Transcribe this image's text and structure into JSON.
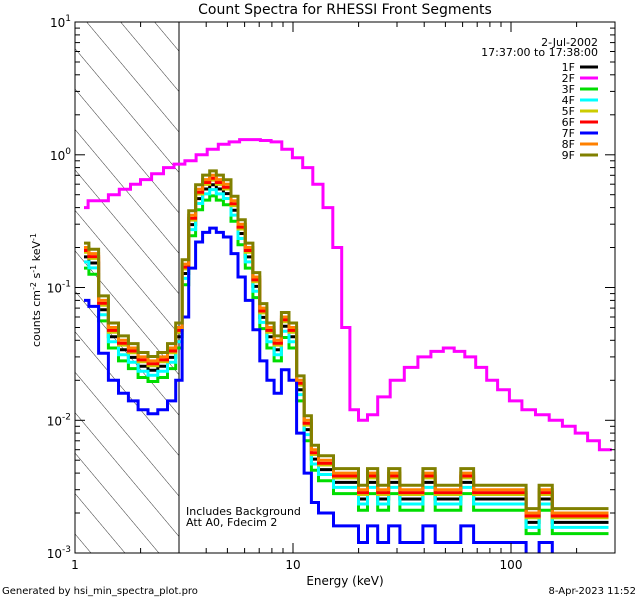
{
  "chart_data": {
    "type": "line",
    "title": "Count Spectra for RHESSI Front Segments",
    "xlabel": "Energy (keV)",
    "ylabel": "counts cm^-2 s^-1 keV^-1",
    "xscale": "log",
    "yscale": "log",
    "xlim": [
      1,
      300
    ],
    "ylim": [
      0.001,
      10
    ],
    "x_ticks": [
      {
        "v": 1,
        "label": "1"
      },
      {
        "v": 10,
        "label": "10"
      },
      {
        "v": 100,
        "label": "100"
      }
    ],
    "y_ticks": [
      {
        "v": 0.001,
        "base": "10",
        "exp": "-3"
      },
      {
        "v": 0.01,
        "base": "10",
        "exp": "-2"
      },
      {
        "v": 0.1,
        "base": "10",
        "exp": "-1"
      },
      {
        "v": 1,
        "base": "10",
        "exp": "0"
      },
      {
        "v": 10,
        "base": "10",
        "exp": "1"
      }
    ],
    "date": "2-Jul-2002",
    "time_range": "17:37:00 to 17:38:00",
    "annotation_lines": [
      "Includes Background",
      "Att A0, Fdecim 2"
    ],
    "shaded_region_x": [
      1,
      3
    ],
    "legend_placement": "top-right",
    "series": [
      {
        "name": "1F",
        "color": "#000000",
        "scale": 0.85
      },
      {
        "name": "2F",
        "color": "#ff00ff",
        "scale": 1.0
      },
      {
        "name": "3F",
        "color": "#00dd00",
        "scale": 0.7
      },
      {
        "name": "4F",
        "color": "#00ffff",
        "scale": 0.78
      },
      {
        "name": "5F",
        "color": "#cccc00",
        "scale": 0.92
      },
      {
        "name": "6F",
        "color": "#ff0000",
        "scale": 0.95
      },
      {
        "name": "7F",
        "color": "#0000ff",
        "scale": 0.4
      },
      {
        "name": "8F",
        "color": "#ff8000",
        "scale": 1.0
      },
      {
        "name": "9F",
        "color": "#808000",
        "scale": 1.08
      }
    ],
    "segment_spectrum_x": [
      1.1,
      1.22,
      1.35,
      1.5,
      1.67,
      1.85,
      2.05,
      2.28,
      2.52,
      2.8,
      3.0,
      3.2,
      3.45,
      3.7,
      4.0,
      4.3,
      4.6,
      5.0,
      5.4,
      5.8,
      6.3,
      6.8,
      7.3,
      7.9,
      8.5,
      9.2,
      10.0,
      10.8,
      11.7,
      12.6,
      13.6,
      14.7,
      16,
      17.5,
      19,
      21,
      23,
      26,
      29,
      33,
      37,
      42,
      48,
      55,
      63,
      72,
      83,
      95,
      110,
      125,
      145,
      165,
      190,
      220,
      250,
      280
    ],
    "segment_spectrum_y": [
      0.2,
      0.18,
      0.08,
      0.05,
      0.04,
      0.035,
      0.03,
      0.028,
      0.03,
      0.035,
      0.05,
      0.15,
      0.35,
      0.55,
      0.65,
      0.7,
      0.65,
      0.6,
      0.45,
      0.3,
      0.2,
      0.12,
      0.07,
      0.05,
      0.04,
      0.06,
      0.05,
      0.02,
      0.01,
      0.006,
      0.005,
      0.005,
      0.004,
      0.004,
      0.004,
      0.003,
      0.004,
      0.003,
      0.004,
      0.003,
      0.003,
      0.004,
      0.003,
      0.003,
      0.004,
      0.003,
      0.003,
      0.003,
      0.003,
      0.002,
      0.003,
      0.002,
      0.002,
      0.002,
      0.002,
      0.002
    ],
    "series_2F": {
      "x": [
        1.1,
        1.2,
        1.35,
        1.5,
        1.7,
        1.9,
        2.1,
        2.4,
        2.7,
        3.0,
        3.4,
        3.8,
        4.3,
        4.8,
        5.4,
        6.0,
        6.7,
        7.5,
        8.4,
        9.4,
        10.5,
        11.7,
        13,
        14.5,
        16,
        17.5,
        19,
        21,
        23,
        26,
        30,
        35,
        40,
        46,
        52,
        58,
        65,
        73,
        82,
        92,
        105,
        120,
        140,
        160,
        185,
        210,
        240,
        270,
        290
      ],
      "y": [
        0.4,
        0.45,
        0.45,
        0.5,
        0.55,
        0.6,
        0.65,
        0.72,
        0.8,
        0.85,
        0.9,
        1.0,
        1.1,
        1.2,
        1.25,
        1.3,
        1.3,
        1.28,
        1.25,
        1.1,
        0.95,
        0.8,
        0.6,
        0.4,
        0.2,
        0.05,
        0.012,
        0.01,
        0.011,
        0.015,
        0.02,
        0.025,
        0.03,
        0.033,
        0.035,
        0.033,
        0.03,
        0.025,
        0.02,
        0.017,
        0.014,
        0.012,
        0.011,
        0.01,
        0.009,
        0.008,
        0.007,
        0.006,
        0.006
      ]
    }
  },
  "footer": {
    "left": "Generated by hsi_min_spectra_plot.pro",
    "right": "8-Apr-2023 11:52"
  }
}
